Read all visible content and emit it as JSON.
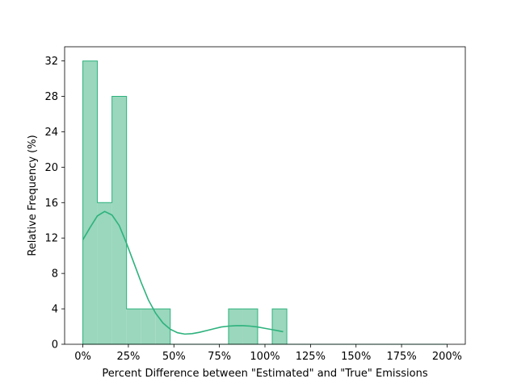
{
  "chart_data": {
    "type": "histogram",
    "title": "",
    "xlabel": "Percent Difference between \"Estimated\" and \"True\" Emissions",
    "ylabel": "Relative Frequency (%)",
    "xlim": [
      -0.1,
      2.1
    ],
    "ylim": [
      0,
      33.6
    ],
    "x_tick_values": [
      0,
      0.25,
      0.5,
      0.75,
      1.0,
      1.25,
      1.5,
      1.75,
      2.0
    ],
    "x_tick_labels": [
      "0%",
      "25%",
      "50%",
      "75%",
      "100%",
      "125%",
      "150%",
      "175%",
      "200%"
    ],
    "y_tick_values": [
      0,
      4,
      8,
      12,
      16,
      20,
      24,
      28,
      32
    ],
    "y_tick_labels": [
      "0",
      "4",
      "8",
      "12",
      "16",
      "20",
      "24",
      "28",
      "32"
    ],
    "bin_width": 0.08,
    "bins": [
      {
        "start": 0.0,
        "value": 32
      },
      {
        "start": 0.08,
        "value": 16
      },
      {
        "start": 0.16,
        "value": 28
      },
      {
        "start": 0.24,
        "value": 4
      },
      {
        "start": 0.32,
        "value": 4
      },
      {
        "start": 0.4,
        "value": 4
      },
      {
        "start": 0.48,
        "value": 0
      },
      {
        "start": 0.56,
        "value": 0
      },
      {
        "start": 0.64,
        "value": 0
      },
      {
        "start": 0.72,
        "value": 0
      },
      {
        "start": 0.8,
        "value": 4
      },
      {
        "start": 0.88,
        "value": 4
      },
      {
        "start": 0.96,
        "value": 0
      },
      {
        "start": 1.04,
        "value": 4
      }
    ],
    "kde": {
      "x": [
        0.0,
        0.04,
        0.08,
        0.12,
        0.16,
        0.2,
        0.24,
        0.28,
        0.32,
        0.36,
        0.4,
        0.44,
        0.48,
        0.52,
        0.56,
        0.6,
        0.64,
        0.68,
        0.72,
        0.76,
        0.8,
        0.84,
        0.88,
        0.92,
        0.96,
        1.0,
        1.04,
        1.08,
        1.1
      ],
      "y": [
        11.8,
        13.2,
        14.5,
        15.0,
        14.6,
        13.4,
        11.4,
        9.2,
        7.0,
        5.0,
        3.5,
        2.4,
        1.7,
        1.3,
        1.15,
        1.2,
        1.35,
        1.55,
        1.75,
        1.95,
        2.05,
        2.1,
        2.1,
        2.05,
        1.95,
        1.8,
        1.65,
        1.5,
        1.42
      ]
    },
    "colors": {
      "fill": "#9ad7bc",
      "edge": "#2db27d",
      "kde": "#2db27d"
    },
    "grid": false,
    "legend": "none"
  }
}
